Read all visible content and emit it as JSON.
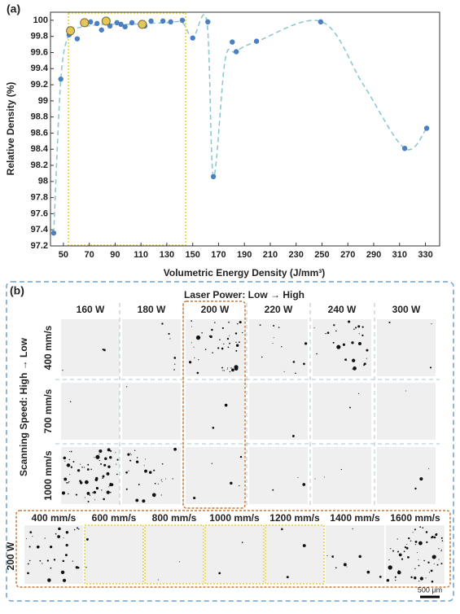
{
  "chart_data": {
    "type": "scatter",
    "panel_label": "(a)",
    "x_label": "Volumetric Energy Density (J/mm³)",
    "y_label": "Relative Density (%)",
    "xlim": [
      40,
      341
    ],
    "ylim": [
      97.2,
      100.1
    ],
    "xticks": [
      50,
      70,
      90,
      110,
      130,
      150,
      170,
      190,
      210,
      230,
      250,
      270,
      290,
      310,
      330
    ],
    "yticks": [
      97.2,
      97.4,
      97.6,
      97.8,
      98,
      98.2,
      98.4,
      98.6,
      98.8,
      99,
      99.2,
      99.4,
      99.6,
      99.8,
      100
    ],
    "series": [
      {
        "color": "#8ec8d2",
        "style": "dashed",
        "x": [
          42.5,
          48,
          54,
          60,
          80,
          100,
          130,
          142,
          150,
          161,
          166,
          175,
          183,
          200,
          250,
          282,
          314,
          331
        ],
        "values": [
          97.36,
          99.27,
          99.82,
          99.9,
          99.95,
          99.95,
          99.97,
          99.97,
          99.78,
          99.98,
          98.06,
          99.5,
          99.61,
          99.74,
          99.98,
          99.2,
          98.41,
          98.66
        ]
      },
      {
        "color": "#4a7fc1",
        "x": [
          42.5,
          48,
          54.4,
          60.7,
          71,
          76,
          79.5,
          86,
          91.4,
          94.5,
          97.7,
          103,
          113,
          117.8,
          127,
          133,
          142,
          150,
          161.7,
          166,
          180.6,
          183.7,
          199.4,
          249,
          314,
          331
        ],
        "values": [
          97.36,
          99.27,
          99.82,
          99.77,
          99.98,
          99.96,
          99.88,
          99.93,
          99.97,
          99.95,
          99.92,
          99.97,
          99.93,
          99.99,
          99.99,
          99.98,
          100,
          99.78,
          99.98,
          98.06,
          99.73,
          99.61,
          99.74,
          99.98,
          98.41,
          98.66
        ]
      },
      {
        "color": "#e3c65a",
        "x": [
          55.5,
          66.3,
          83,
          111
        ],
        "values": [
          99.87,
          99.97,
          99.99,
          99.95
        ]
      }
    ]
  },
  "panel_b": {
    "label": "(b)",
    "title": "Laser Power: Low → High",
    "row_axis_label": "Scanning Speed: High → Low",
    "columns": [
      "160 W",
      "180 W",
      "200 W",
      "220 W",
      "240 W",
      "300 W"
    ],
    "rows": [
      "400 mm/s",
      "700 mm/s",
      "1000 mm/s"
    ],
    "bottom_row": {
      "label": "200 W",
      "columns": [
        "400 mm/s",
        "600 mm/s",
        "800 mm/s",
        "1000 mm/s",
        "1200 mm/s",
        "1400 mm/s",
        "1600 mm/s"
      ]
    },
    "scale_bar": "500 μm"
  }
}
